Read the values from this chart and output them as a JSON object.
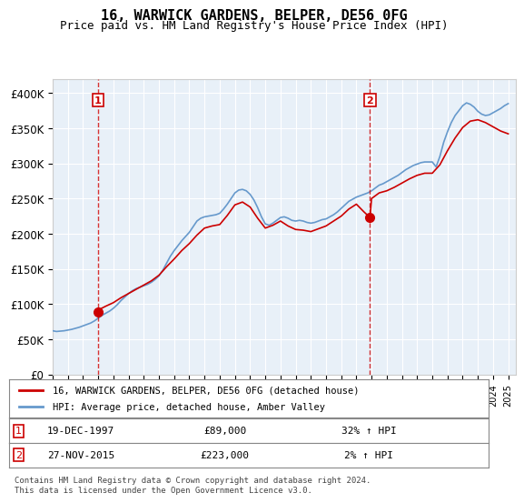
{
  "title": "16, WARWICK GARDENS, BELPER, DE56 0FG",
  "subtitle": "Price paid vs. HM Land Registry's House Price Index (HPI)",
  "ylabel": "",
  "xlim_years": [
    1995,
    2025.5
  ],
  "ylim": [
    0,
    420000
  ],
  "yticks": [
    0,
    50000,
    100000,
    150000,
    200000,
    250000,
    300000,
    350000,
    400000
  ],
  "ytick_labels": [
    "£0",
    "£50K",
    "£100K",
    "£150K",
    "£200K",
    "£250K",
    "£300K",
    "£350K",
    "£400K"
  ],
  "transaction1": {
    "date_num": 1997.97,
    "price": 89000,
    "label": "1",
    "date_str": "19-DEC-1997",
    "price_str": "£89,000",
    "hpi_str": "32% ↑ HPI"
  },
  "transaction2": {
    "date_num": 2015.9,
    "price": 223000,
    "label": "2",
    "date_str": "27-NOV-2015",
    "price_str": "£223,000",
    "hpi_str": "2% ↑ HPI"
  },
  "legend_red": "16, WARWICK GARDENS, BELPER, DE56 0FG (detached house)",
  "legend_blue": "HPI: Average price, detached house, Amber Valley",
  "footnote": "Contains HM Land Registry data © Crown copyright and database right 2024.\nThis data is licensed under the Open Government Licence v3.0.",
  "hpi_color": "#6699cc",
  "price_color": "#cc0000",
  "background_color": "#ffffff",
  "plot_bg_color": "#e8f0f8",
  "hpi_data_x": [
    1995.0,
    1995.25,
    1995.5,
    1995.75,
    1996.0,
    1996.25,
    1996.5,
    1996.75,
    1997.0,
    1997.25,
    1997.5,
    1997.75,
    1998.0,
    1998.25,
    1998.5,
    1998.75,
    1999.0,
    1999.25,
    1999.5,
    1999.75,
    2000.0,
    2000.25,
    2000.5,
    2000.75,
    2001.0,
    2001.25,
    2001.5,
    2001.75,
    2002.0,
    2002.25,
    2002.5,
    2002.75,
    2003.0,
    2003.25,
    2003.5,
    2003.75,
    2004.0,
    2004.25,
    2004.5,
    2004.75,
    2005.0,
    2005.25,
    2005.5,
    2005.75,
    2006.0,
    2006.25,
    2006.5,
    2006.75,
    2007.0,
    2007.25,
    2007.5,
    2007.75,
    2008.0,
    2008.25,
    2008.5,
    2008.75,
    2009.0,
    2009.25,
    2009.5,
    2009.75,
    2010.0,
    2010.25,
    2010.5,
    2010.75,
    2011.0,
    2011.25,
    2011.5,
    2011.75,
    2012.0,
    2012.25,
    2012.5,
    2012.75,
    2013.0,
    2013.25,
    2013.5,
    2013.75,
    2014.0,
    2014.25,
    2014.5,
    2014.75,
    2015.0,
    2015.25,
    2015.5,
    2015.75,
    2016.0,
    2016.25,
    2016.5,
    2016.75,
    2017.0,
    2017.25,
    2017.5,
    2017.75,
    2018.0,
    2018.25,
    2018.5,
    2018.75,
    2019.0,
    2019.25,
    2019.5,
    2019.75,
    2020.0,
    2020.25,
    2020.5,
    2020.75,
    2021.0,
    2021.25,
    2021.5,
    2021.75,
    2022.0,
    2022.25,
    2022.5,
    2022.75,
    2023.0,
    2023.25,
    2023.5,
    2023.75,
    2024.0,
    2024.25,
    2024.5,
    2024.75,
    2025.0
  ],
  "hpi_data_y": [
    62000,
    61000,
    61500,
    62000,
    63000,
    64000,
    65500,
    67000,
    69000,
    71000,
    73000,
    76000,
    80000,
    84000,
    87000,
    90000,
    94000,
    99000,
    105000,
    110000,
    115000,
    119000,
    122000,
    124000,
    126000,
    128000,
    131000,
    135000,
    140000,
    148000,
    158000,
    168000,
    176000,
    183000,
    190000,
    196000,
    202000,
    210000,
    218000,
    222000,
    224000,
    225000,
    226000,
    227000,
    229000,
    235000,
    242000,
    250000,
    258000,
    262000,
    263000,
    261000,
    256000,
    248000,
    237000,
    224000,
    214000,
    212000,
    215000,
    219000,
    223000,
    224000,
    222000,
    219000,
    218000,
    219000,
    218000,
    216000,
    215000,
    216000,
    218000,
    220000,
    221000,
    224000,
    227000,
    231000,
    236000,
    241000,
    246000,
    249000,
    252000,
    254000,
    256000,
    258000,
    261000,
    265000,
    269000,
    271000,
    274000,
    277000,
    280000,
    283000,
    287000,
    291000,
    294000,
    297000,
    299000,
    301000,
    302000,
    302000,
    302000,
    295000,
    310000,
    330000,
    345000,
    358000,
    368000,
    375000,
    382000,
    386000,
    384000,
    380000,
    374000,
    370000,
    368000,
    369000,
    372000,
    375000,
    378000,
    382000,
    385000
  ],
  "price_data_x": [
    1997.97,
    1997.97,
    1998.0,
    1998.5,
    1999.0,
    1999.5,
    2000.0,
    2000.5,
    2001.0,
    2001.5,
    2002.0,
    2002.5,
    2003.0,
    2003.5,
    2004.0,
    2004.5,
    2005.0,
    2005.5,
    2006.0,
    2006.5,
    2007.0,
    2007.5,
    2008.0,
    2008.5,
    2009.0,
    2009.5,
    2010.0,
    2010.5,
    2011.0,
    2011.5,
    2012.0,
    2012.5,
    2013.0,
    2013.5,
    2014.0,
    2014.5,
    2015.0,
    2015.5,
    2015.9,
    2015.9,
    2016.0,
    2016.5,
    2017.0,
    2017.5,
    2018.0,
    2018.5,
    2019.0,
    2019.5,
    2020.0,
    2020.5,
    2021.0,
    2021.5,
    2022.0,
    2022.5,
    2023.0,
    2023.5,
    2024.0,
    2024.5,
    2025.0
  ],
  "price_data_y": [
    89000,
    89000,
    91500,
    97000,
    102000,
    109000,
    115000,
    121000,
    127000,
    133000,
    141000,
    153000,
    164000,
    176000,
    186000,
    198000,
    208000,
    211000,
    213000,
    226000,
    241000,
    245000,
    238000,
    222000,
    208000,
    212000,
    218000,
    211000,
    206000,
    205000,
    203000,
    207000,
    211000,
    218000,
    225000,
    235000,
    242000,
    231000,
    223000,
    223000,
    250000,
    258000,
    261000,
    266000,
    272000,
    278000,
    283000,
    286000,
    286000,
    298000,
    318000,
    336000,
    351000,
    360000,
    362000,
    358000,
    352000,
    346000,
    342000
  ]
}
